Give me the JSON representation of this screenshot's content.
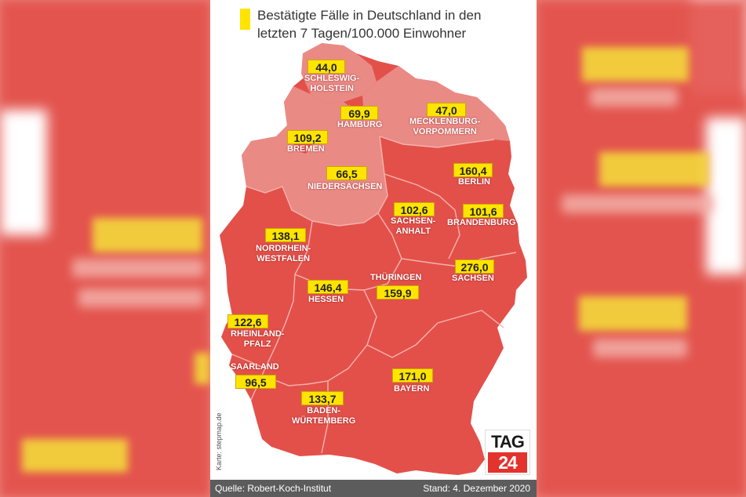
{
  "title": "Bestätigte Fälle in Deutschland in den letzten 7 Tagen/100.000 Einwohner",
  "credit": "Karte: stepmap.de",
  "footer": {
    "source": "Quelle: Robert-Koch-Institut",
    "date": "Stand: 4. Dezember 2020"
  },
  "logo": {
    "line1": "TAG",
    "line2": "24"
  },
  "colors": {
    "high": "#e3504a",
    "medium": "#ea8a85",
    "label_box": "#ffe400",
    "background_blur": "#e9837d"
  },
  "states": [
    {
      "value": "44,0",
      "name": "SCHLESWIG-\nHOLSTEIN",
      "category": "medium"
    },
    {
      "value": "69,9",
      "name": "HAMBURG",
      "category": "medium"
    },
    {
      "value": "47,0",
      "name": "MECKLENBURG-\nVORPOMMERN",
      "category": "medium"
    },
    {
      "value": "109,2",
      "name": "BREMEN",
      "category": "high"
    },
    {
      "value": "66,5",
      "name": "NIEDERSACHSEN",
      "category": "medium"
    },
    {
      "value": "160,4",
      "name": "BERLIN",
      "category": "high"
    },
    {
      "value": "102,6",
      "name": "SACHSEN-\nANHALT",
      "category": "high"
    },
    {
      "value": "101,6",
      "name": "BRANDENBURG",
      "category": "high"
    },
    {
      "value": "138,1",
      "name": "NORDRHEIN-\nWESTFALEN",
      "category": "high"
    },
    {
      "value": "276,0",
      "name": "SACHSEN",
      "category": "high"
    },
    {
      "value": "159,9",
      "name": "THÜRINGEN",
      "category": "high"
    },
    {
      "value": "146,4",
      "name": "HESSEN",
      "category": "high"
    },
    {
      "value": "122,6",
      "name": "RHEINLAND-\nPFALZ",
      "category": "high"
    },
    {
      "value": "96,5",
      "name": "SAARLAND",
      "category": "high"
    },
    {
      "value": "171,0",
      "name": "BAYERN",
      "category": "high"
    },
    {
      "value": "133,7",
      "name": "BADEN-\nWÜRTEMBERG",
      "category": "high"
    }
  ]
}
